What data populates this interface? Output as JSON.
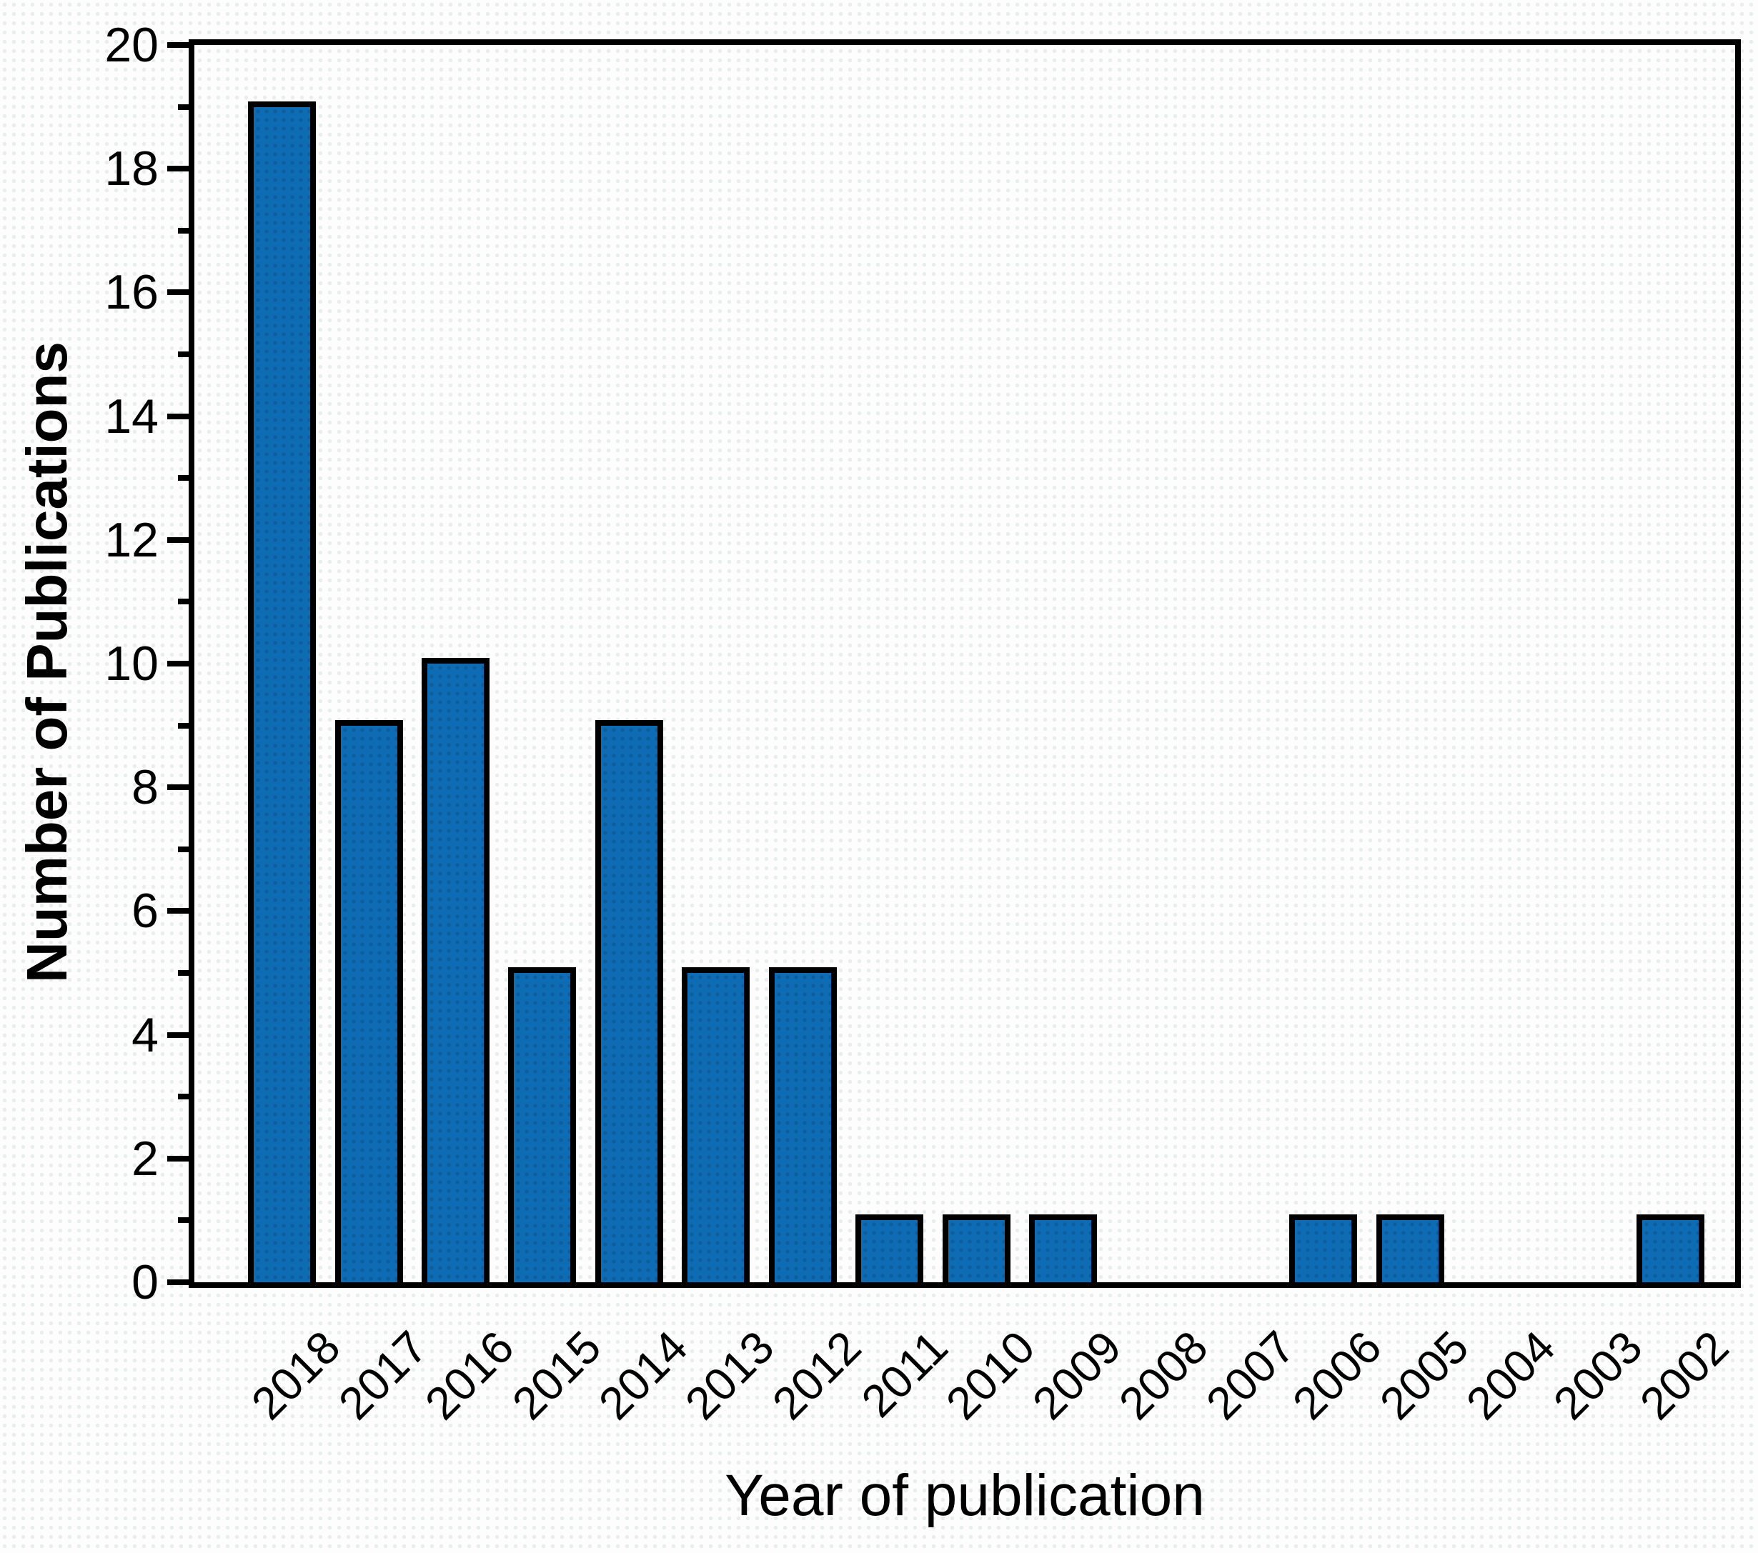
{
  "chart_data": {
    "type": "bar",
    "title": "",
    "xlabel": "Year of publication",
    "ylabel": "Number of Publications",
    "categories": [
      "2018",
      "2017",
      "2016",
      "2015",
      "2014",
      "2013",
      "2012",
      "2011",
      "2010",
      "2009",
      "2008",
      "2007",
      "2006",
      "2005",
      "2004",
      "2003",
      "2002"
    ],
    "values": [
      19,
      9,
      10,
      5,
      9,
      5,
      5,
      1,
      1,
      1,
      0,
      0,
      1,
      1,
      0,
      0,
      1
    ],
    "ylim": [
      0,
      20
    ],
    "ytick_labels": [
      "0",
      "2",
      "4",
      "6",
      "8",
      "10",
      "12",
      "14",
      "16",
      "18",
      "20"
    ],
    "ytick_major_values": [
      0,
      2,
      4,
      6,
      8,
      10,
      12,
      14,
      16,
      18,
      20
    ],
    "ytick_minor_values": [
      1,
      3,
      5,
      7,
      9,
      11,
      13,
      15,
      17,
      19
    ],
    "x_tick_rotation_deg": 45,
    "grid": false,
    "legend": null,
    "colors": {
      "bar_fill": "#0e6cb4",
      "bar_dot": "rgba(0,0,0,0.13)",
      "bar_edge": "#000000",
      "axis": "#000000",
      "text": "#000000",
      "background": "#fdfdfd",
      "background_dot": "#e9eded"
    }
  }
}
